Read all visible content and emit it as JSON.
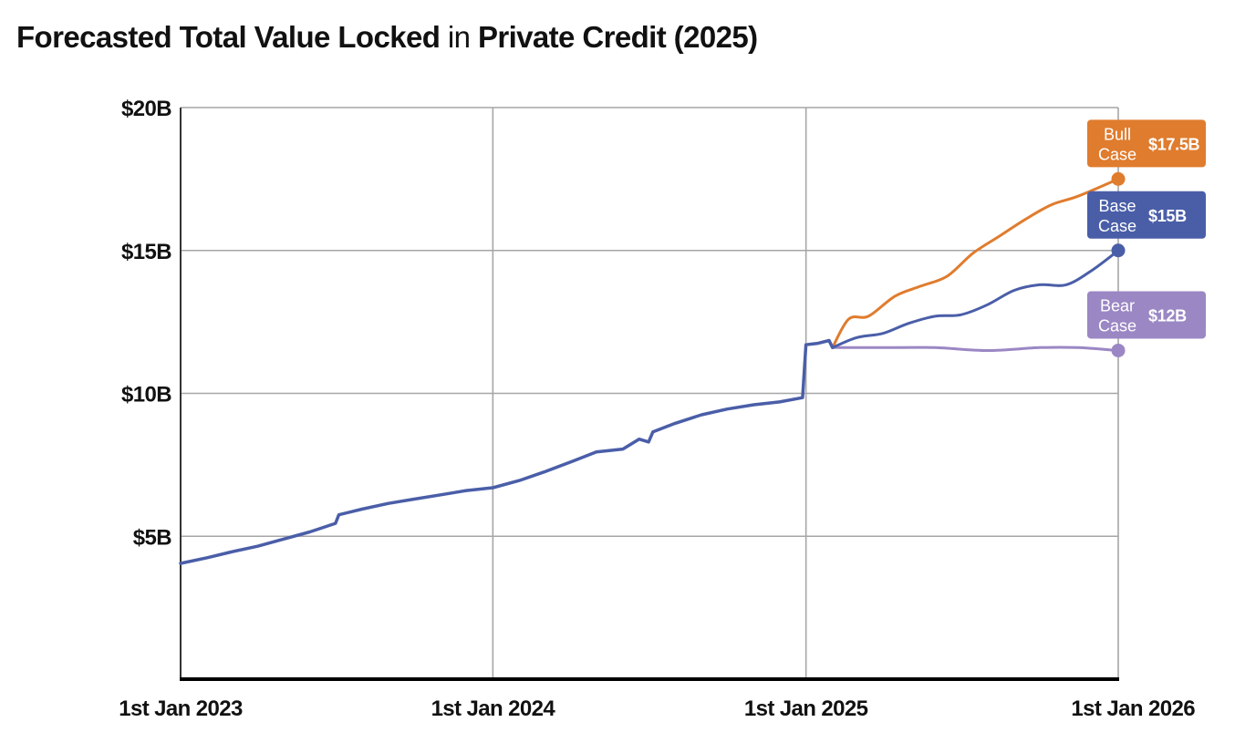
{
  "title": {
    "part1": "Forecasted Total Value Locked",
    "part2": " in ",
    "part3": "Private Credit (2025)"
  },
  "chart_data": {
    "type": "line",
    "title": "Forecasted Total Value Locked in Private Credit (2025)",
    "xlabel": "",
    "ylabel": "",
    "x_range": [
      "2023-01-01",
      "2026-01-01"
    ],
    "ylim": [
      0,
      20
    ],
    "grid": true,
    "y_ticks": [
      {
        "value": 20,
        "label": "$20B"
      },
      {
        "value": 15,
        "label": "$15B"
      },
      {
        "value": 10,
        "label": "$10B"
      },
      {
        "value": 5,
        "label": "$5B"
      }
    ],
    "x_ticks": [
      {
        "value": "2023-01-01",
        "label": "1st Jan 2023"
      },
      {
        "value": "2024-01-01",
        "label": "1st Jan 2024"
      },
      {
        "value": "2025-01-01",
        "label": "1st Jan 2025"
      },
      {
        "value": "2026-01-01",
        "label": "1st Jan 2026"
      }
    ],
    "series": [
      {
        "id": "historical",
        "color": "#4a5ea8",
        "points": [
          [
            "2023-01-01",
            4.05
          ],
          [
            "2023-02-01",
            4.25
          ],
          [
            "2023-03-01",
            4.45
          ],
          [
            "2023-04-01",
            4.65
          ],
          [
            "2023-05-01",
            4.9
          ],
          [
            "2023-06-01",
            5.15
          ],
          [
            "2023-07-01",
            5.45
          ],
          [
            "2023-07-05",
            5.75
          ],
          [
            "2023-08-01",
            5.95
          ],
          [
            "2023-09-01",
            6.15
          ],
          [
            "2023-10-01",
            6.3
          ],
          [
            "2023-11-01",
            6.45
          ],
          [
            "2023-12-01",
            6.6
          ],
          [
            "2024-01-01",
            6.7
          ],
          [
            "2024-02-01",
            6.95
          ],
          [
            "2024-03-01",
            7.25
          ],
          [
            "2024-04-01",
            7.6
          ],
          [
            "2024-05-01",
            7.95
          ],
          [
            "2024-06-01",
            8.05
          ],
          [
            "2024-06-20",
            8.4
          ],
          [
            "2024-07-01",
            8.3
          ],
          [
            "2024-07-06",
            8.65
          ],
          [
            "2024-08-01",
            8.95
          ],
          [
            "2024-09-01",
            9.25
          ],
          [
            "2024-10-01",
            9.45
          ],
          [
            "2024-11-01",
            9.6
          ],
          [
            "2024-12-01",
            9.7
          ],
          [
            "2024-12-28",
            9.85
          ],
          [
            "2025-01-01",
            11.7
          ],
          [
            "2025-01-15",
            11.75
          ],
          [
            "2025-01-28",
            11.85
          ],
          [
            "2025-02-01",
            11.6
          ]
        ]
      },
      {
        "id": "bull",
        "color": "#e07c2e",
        "name": "Bull Case",
        "end_label": "$17.5B",
        "points": [
          [
            "2025-02-01",
            11.6
          ],
          [
            "2025-02-20",
            12.6
          ],
          [
            "2025-03-15",
            12.7
          ],
          [
            "2025-04-15",
            13.4
          ],
          [
            "2025-05-15",
            13.75
          ],
          [
            "2025-06-15",
            14.1
          ],
          [
            "2025-07-15",
            14.9
          ],
          [
            "2025-08-15",
            15.5
          ],
          [
            "2025-09-15",
            16.1
          ],
          [
            "2025-10-15",
            16.6
          ],
          [
            "2025-11-15",
            16.9
          ],
          [
            "2026-01-01",
            17.5
          ]
        ]
      },
      {
        "id": "base",
        "color": "#4a5ea8",
        "name": "Base Case",
        "end_label": "$15B",
        "points": [
          [
            "2025-02-01",
            11.6
          ],
          [
            "2025-03-01",
            11.95
          ],
          [
            "2025-04-01",
            12.1
          ],
          [
            "2025-05-01",
            12.45
          ],
          [
            "2025-06-01",
            12.7
          ],
          [
            "2025-07-01",
            12.75
          ],
          [
            "2025-08-01",
            13.1
          ],
          [
            "2025-09-01",
            13.6
          ],
          [
            "2025-10-01",
            13.8
          ],
          [
            "2025-11-01",
            13.8
          ],
          [
            "2025-12-01",
            14.3
          ],
          [
            "2026-01-01",
            15.0
          ]
        ]
      },
      {
        "id": "bear",
        "color": "#9b87c4",
        "name": "Bear Case",
        "end_label": "$12B",
        "points": [
          [
            "2025-02-01",
            11.6
          ],
          [
            "2025-04-01",
            11.6
          ],
          [
            "2025-06-01",
            11.6
          ],
          [
            "2025-08-01",
            11.5
          ],
          [
            "2025-10-01",
            11.6
          ],
          [
            "2025-11-15",
            11.6
          ],
          [
            "2026-01-01",
            11.5
          ]
        ]
      }
    ],
    "labels": [
      {
        "series": "bull",
        "line1": "Bull",
        "line2": "Case",
        "value": "$17.5B",
        "color": "#e07c2e"
      },
      {
        "series": "base",
        "line1": "Base",
        "line2": "Case",
        "value": "$15B",
        "color": "#4a5ea8"
      },
      {
        "series": "bear",
        "line1": "Bear",
        "line2": "Case",
        "value": "$12B",
        "color": "#9b87c4"
      }
    ]
  }
}
